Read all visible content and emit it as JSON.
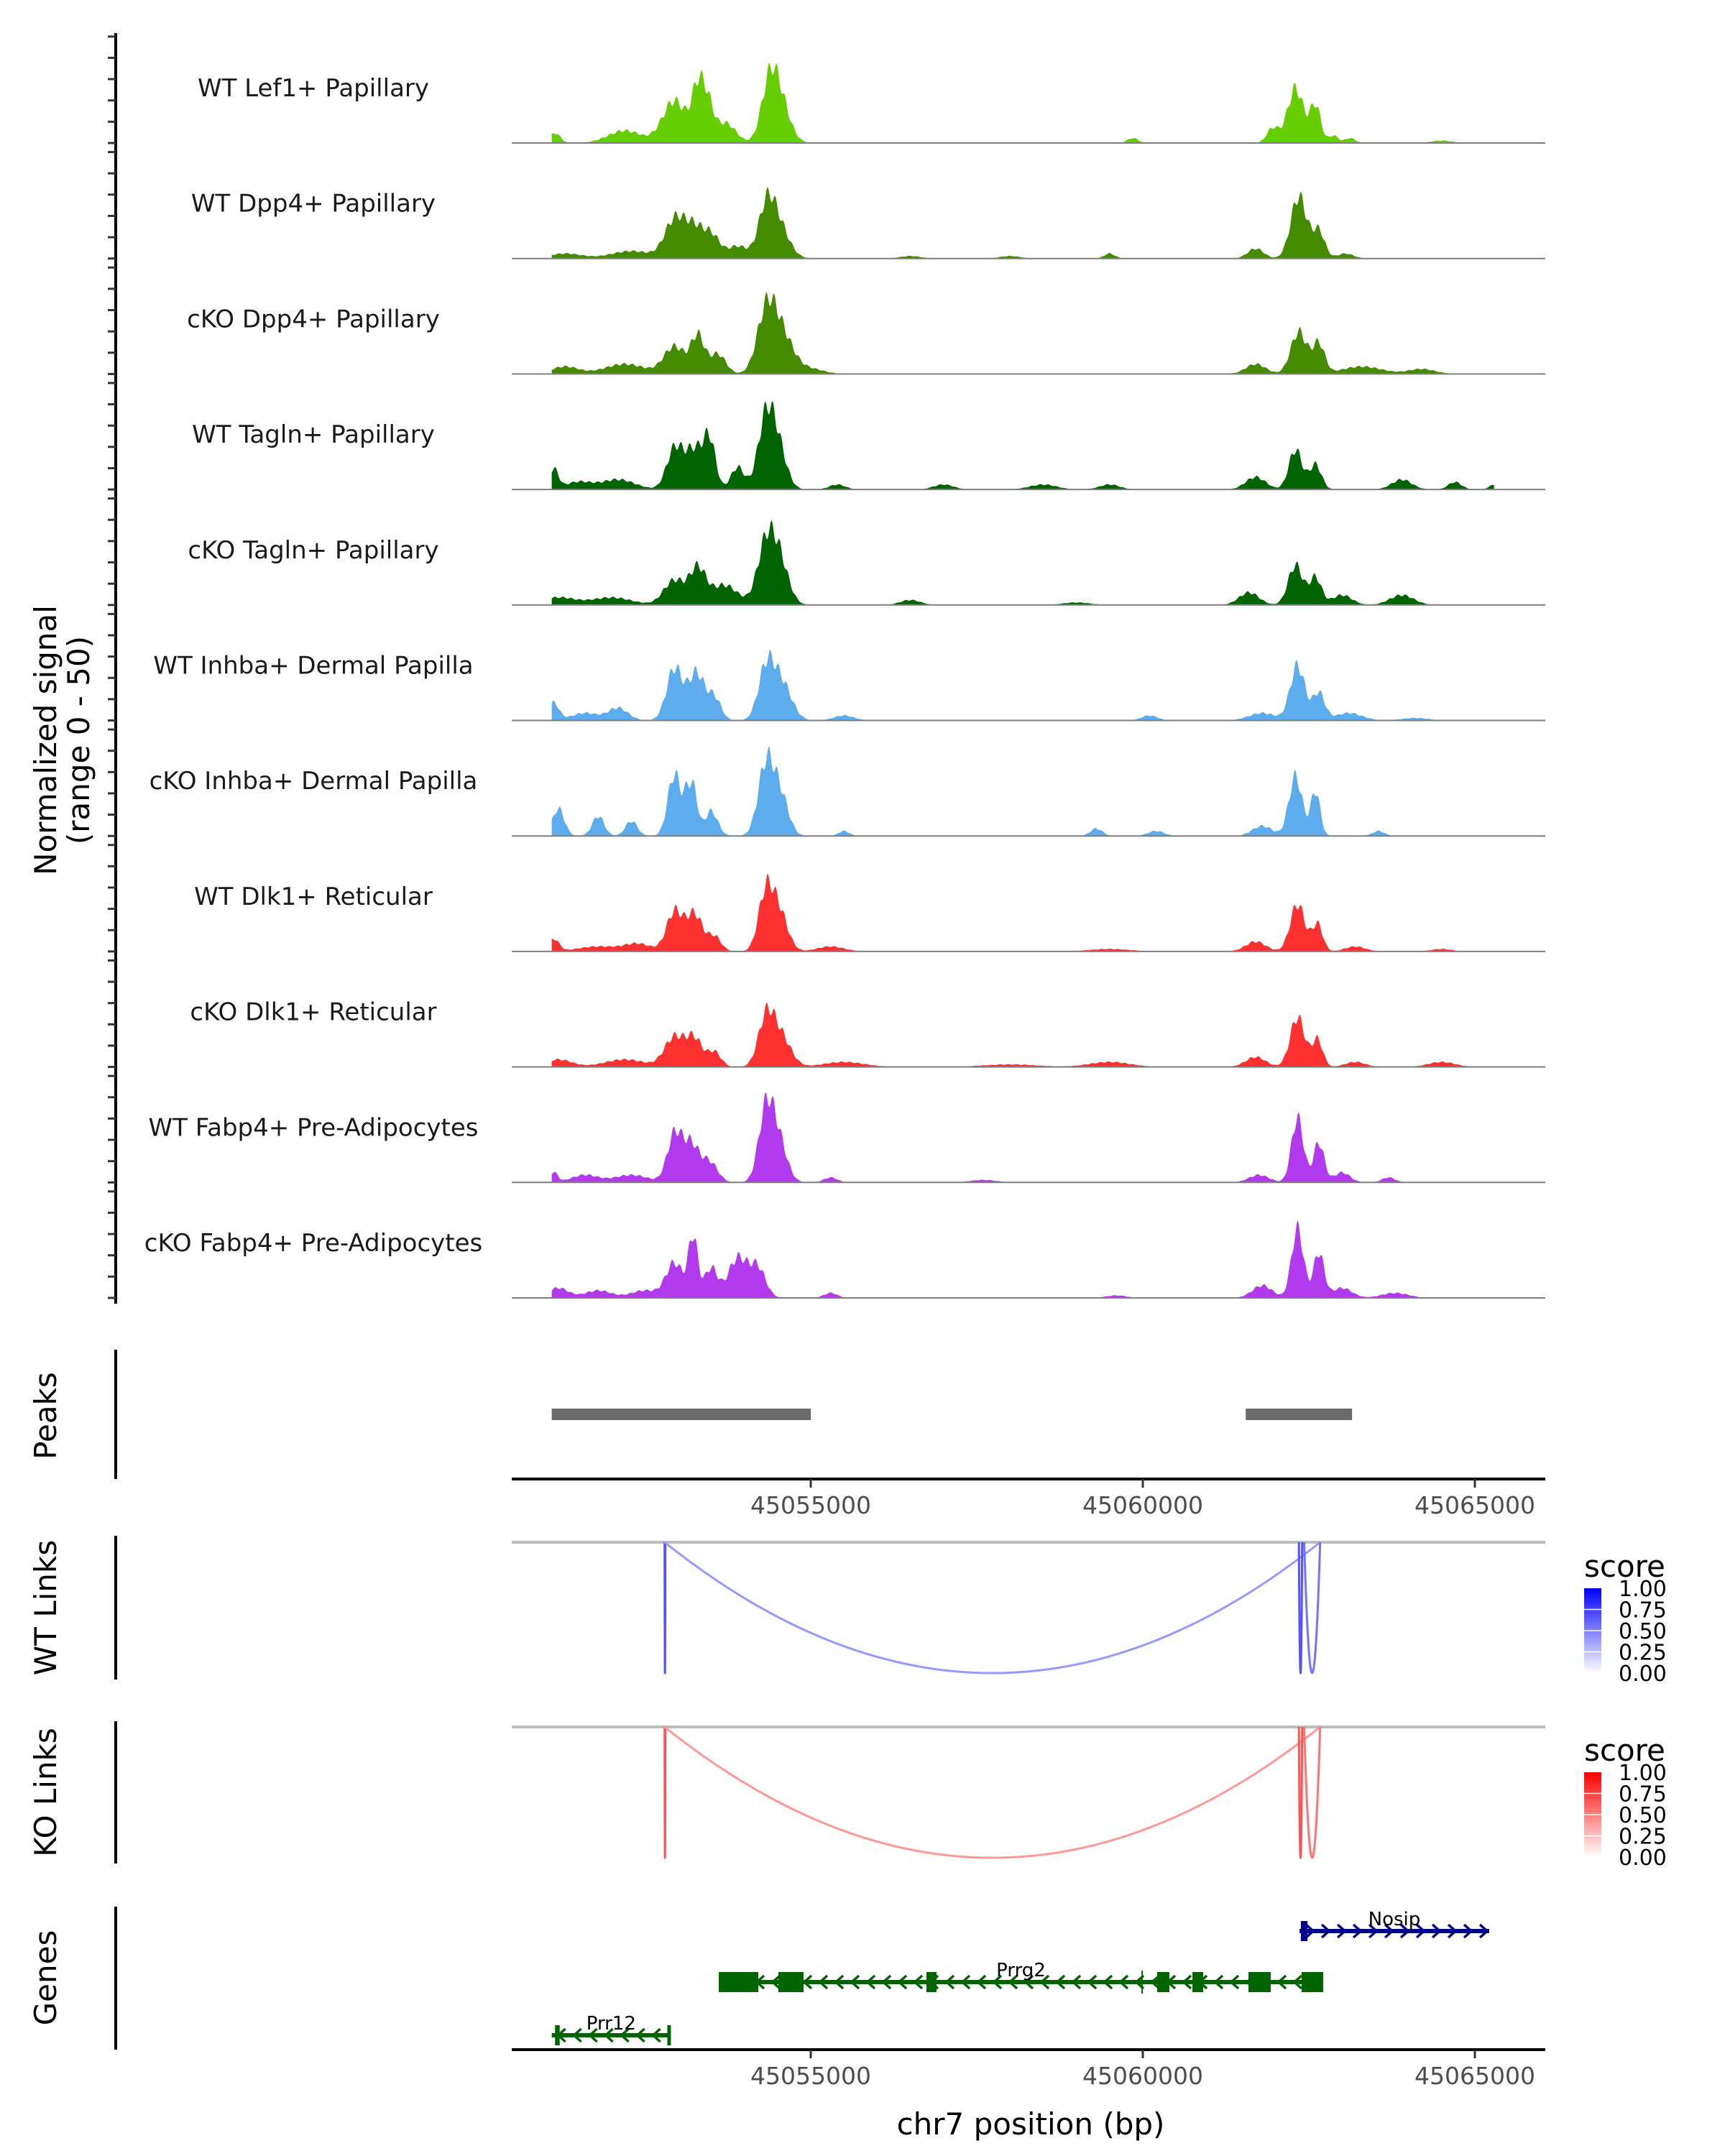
{
  "chart_data": {
    "type": "area",
    "title": "",
    "region": {
      "chrom": "chr7",
      "start": 45050400,
      "end": 45065900
    },
    "signal_axis": {
      "label_line1": "Normalized signal",
      "label_line2": "(range 0 - 50)",
      "ylim": [
        0,
        50
      ]
    },
    "coverage_tracks": [
      {
        "name": "WT Lef1+ Papillary",
        "color": "#66CD00",
        "peaks": [
          [
            45051150,
            4,
            80
          ],
          [
            45052200,
            5,
            250
          ],
          [
            45052950,
            17,
            180
          ],
          [
            45053300,
            20,
            90
          ],
          [
            45053450,
            14,
            90
          ],
          [
            45053720,
            8,
            150
          ],
          [
            45054370,
            18,
            120
          ],
          [
            45054520,
            18,
            150
          ],
          [
            45059850,
            2,
            80
          ],
          [
            45061960,
            6,
            90
          ],
          [
            45062300,
            22,
            120
          ],
          [
            45062600,
            15,
            80
          ],
          [
            45062870,
            3,
            70
          ],
          [
            45063120,
            2,
            80
          ],
          [
            45064500,
            1,
            150
          ]
        ]
      },
      {
        "name": "WT Dpp4+ Papillary",
        "color": "#458B00",
        "peaks": [
          [
            45051300,
            2,
            250
          ],
          [
            45052300,
            3,
            300
          ],
          [
            45052950,
            15,
            150
          ],
          [
            45053250,
            12,
            150
          ],
          [
            45053520,
            8,
            120
          ],
          [
            45053900,
            5,
            150
          ],
          [
            45054330,
            17,
            120
          ],
          [
            45054500,
            14,
            160
          ],
          [
            45056500,
            1,
            150
          ],
          [
            45058000,
            1,
            150
          ],
          [
            45059500,
            2,
            80
          ],
          [
            45061700,
            4,
            120
          ],
          [
            45062350,
            25,
            120
          ],
          [
            45062650,
            11,
            90
          ],
          [
            45063050,
            2,
            120
          ]
        ]
      },
      {
        "name": "cKO Dpp4+ Papillary",
        "color": "#458B00",
        "peaks": [
          [
            45051300,
            3,
            200
          ],
          [
            45052200,
            4,
            300
          ],
          [
            45052950,
            11,
            160
          ],
          [
            45053300,
            15,
            100
          ],
          [
            45053600,
            8,
            120
          ],
          [
            45054330,
            22,
            140
          ],
          [
            45054550,
            16,
            180
          ],
          [
            45055000,
            2,
            200
          ],
          [
            45061700,
            4,
            150
          ],
          [
            45062350,
            17,
            120
          ],
          [
            45062650,
            12,
            90
          ],
          [
            45063300,
            3,
            300
          ],
          [
            45064200,
            2,
            200
          ]
        ]
      },
      {
        "name": "WT Tagln+ Papillary",
        "color": "#006400",
        "peaks": [
          [
            45051130,
            8,
            70
          ],
          [
            45051500,
            3,
            200
          ],
          [
            45052100,
            4,
            250
          ],
          [
            45052950,
            16,
            120
          ],
          [
            45053250,
            16,
            140
          ],
          [
            45053480,
            18,
            90
          ],
          [
            45053900,
            9,
            100
          ],
          [
            45054320,
            26,
            120
          ],
          [
            45054500,
            17,
            130
          ],
          [
            45055400,
            2,
            120
          ],
          [
            45057000,
            2,
            150
          ],
          [
            45058500,
            2,
            200
          ],
          [
            45059500,
            2,
            150
          ],
          [
            45061700,
            5,
            150
          ],
          [
            45062300,
            16,
            100
          ],
          [
            45062600,
            10,
            90
          ],
          [
            45063900,
            4,
            150
          ],
          [
            45064700,
            3,
            100
          ],
          [
            45065300,
            2,
            80
          ]
        ]
      },
      {
        "name": "cKO Tagln+ Papillary",
        "color": "#006400",
        "peaks": [
          [
            45051200,
            3,
            250
          ],
          [
            45052000,
            3,
            300
          ],
          [
            45052950,
            10,
            160
          ],
          [
            45053300,
            14,
            120
          ],
          [
            45053700,
            8,
            200
          ],
          [
            45054320,
            22,
            130
          ],
          [
            45054520,
            18,
            140
          ],
          [
            45056500,
            2,
            150
          ],
          [
            45059000,
            1,
            200
          ],
          [
            45061600,
            5,
            150
          ],
          [
            45062300,
            16,
            110
          ],
          [
            45062600,
            11,
            90
          ],
          [
            45063000,
            4,
            150
          ],
          [
            45063900,
            4,
            180
          ]
        ]
      },
      {
        "name": "WT Inhba+ Dermal Papilla",
        "color": "#5CACEE",
        "peaks": [
          [
            45051130,
            7,
            80
          ],
          [
            45051600,
            3,
            200
          ],
          [
            45052100,
            5,
            150
          ],
          [
            45052950,
            21,
            120
          ],
          [
            45053280,
            19,
            120
          ],
          [
            45053550,
            9,
            100
          ],
          [
            45054330,
            20,
            120
          ],
          [
            45054560,
            15,
            150
          ],
          [
            45055500,
            2,
            150
          ],
          [
            45060100,
            2,
            120
          ],
          [
            45061800,
            3,
            200
          ],
          [
            45062330,
            22,
            110
          ],
          [
            45062650,
            11,
            90
          ],
          [
            45063100,
            3,
            200
          ],
          [
            45064100,
            1,
            200
          ]
        ]
      },
      {
        "name": "cKO Inhba+ Dermal Papilla",
        "color": "#5CACEE",
        "peaks": [
          [
            45051200,
            11,
            90
          ],
          [
            45051800,
            8,
            90
          ],
          [
            45052300,
            6,
            90
          ],
          [
            45052950,
            25,
            100
          ],
          [
            45053150,
            14,
            60
          ],
          [
            45053250,
            15,
            60
          ],
          [
            45053500,
            10,
            100
          ],
          [
            45054330,
            29,
            120
          ],
          [
            45054550,
            15,
            120
          ],
          [
            45055500,
            2,
            80
          ],
          [
            45059300,
            3,
            90
          ],
          [
            45060200,
            2,
            120
          ],
          [
            45061800,
            4,
            150
          ],
          [
            45062300,
            24,
            100
          ],
          [
            45062600,
            18,
            70
          ],
          [
            45063550,
            2,
            90
          ]
        ]
      },
      {
        "name": "WT Dlk1+ Reticular",
        "color": "#FF3030",
        "peaks": [
          [
            45051130,
            5,
            80
          ],
          [
            45051800,
            2,
            300
          ],
          [
            45052400,
            3,
            200
          ],
          [
            45052950,
            16,
            120
          ],
          [
            45053250,
            15,
            120
          ],
          [
            45053550,
            6,
            100
          ],
          [
            45054320,
            22,
            110
          ],
          [
            45054520,
            16,
            130
          ],
          [
            45055300,
            2,
            200
          ],
          [
            45059500,
            1,
            300
          ],
          [
            45061700,
            4,
            150
          ],
          [
            45062330,
            19,
            110
          ],
          [
            45062630,
            11,
            80
          ],
          [
            45063200,
            2,
            150
          ],
          [
            45064500,
            1,
            150
          ]
        ]
      },
      {
        "name": "cKO Dlk1+ Reticular",
        "color": "#FF3030",
        "peaks": [
          [
            45051200,
            3,
            200
          ],
          [
            45052200,
            3,
            300
          ],
          [
            45052950,
            12,
            150
          ],
          [
            45053250,
            11,
            120
          ],
          [
            45053550,
            6,
            100
          ],
          [
            45054330,
            19,
            120
          ],
          [
            45054550,
            12,
            150
          ],
          [
            45055500,
            2,
            300
          ],
          [
            45058000,
            1,
            400
          ],
          [
            45059500,
            2,
            300
          ],
          [
            45061700,
            4,
            150
          ],
          [
            45062330,
            20,
            110
          ],
          [
            45062630,
            11,
            80
          ],
          [
            45063200,
            2,
            150
          ],
          [
            45064500,
            2,
            200
          ]
        ]
      },
      {
        "name": "WT Fabp4+ Pre-Adipocytes",
        "color": "#B23AEE",
        "peaks": [
          [
            45051130,
            4,
            60
          ],
          [
            45051600,
            3,
            200
          ],
          [
            45052300,
            3,
            250
          ],
          [
            45052950,
            19,
            110
          ],
          [
            45053200,
            15,
            120
          ],
          [
            45053480,
            8,
            120
          ],
          [
            45054320,
            26,
            110
          ],
          [
            45054500,
            18,
            130
          ],
          [
            45055300,
            2,
            100
          ],
          [
            45057600,
            1,
            200
          ],
          [
            45061750,
            3,
            150
          ],
          [
            45062330,
            26,
            90
          ],
          [
            45062650,
            16,
            80
          ],
          [
            45063000,
            4,
            120
          ],
          [
            45063700,
            2,
            100
          ]
        ]
      },
      {
        "name": "cKO Fabp4+ Pre-Adipocytes",
        "color": "#B23AEE",
        "peaks": [
          [
            45051200,
            4,
            150
          ],
          [
            45051800,
            3,
            200
          ],
          [
            45052500,
            3,
            200
          ],
          [
            45052950,
            14,
            130
          ],
          [
            45053230,
            24,
            70
          ],
          [
            45053500,
            12,
            100
          ],
          [
            45053900,
            16,
            140
          ],
          [
            45054200,
            12,
            120
          ],
          [
            45055300,
            2,
            100
          ],
          [
            45059600,
            1,
            150
          ],
          [
            45061800,
            5,
            150
          ],
          [
            45062330,
            28,
            90
          ],
          [
            45062650,
            18,
            80
          ],
          [
            45063000,
            4,
            150
          ],
          [
            45063800,
            2,
            200
          ]
        ]
      }
    ],
    "peaks_track": {
      "label": "Peaks",
      "color": "#696969",
      "regions": [
        [
          45051100,
          45055000
        ],
        [
          45061550,
          45063150
        ]
      ]
    },
    "x_axis": {
      "label": "chr7 position (bp)",
      "ticks": [
        45055000,
        45060000,
        45065000
      ],
      "tick_labels": [
        "45055000",
        "45060000",
        "45065000"
      ]
    },
    "links_tracks": [
      {
        "label": "WT Links",
        "legend_title": "score",
        "low_color": "#FFFFFF",
        "high_color": "#0000FF",
        "legend_ticks": [
          "1.00",
          "0.75",
          "0.50",
          "0.25",
          "0.00"
        ],
        "links": [
          {
            "start": 45052800,
            "end": 45052810,
            "score": 0.68
          },
          {
            "start": 45052800,
            "end": 45062670,
            "score": 0.4
          },
          {
            "start": 45062350,
            "end": 45062400,
            "score": 0.68
          },
          {
            "start": 45062430,
            "end": 45062670,
            "score": 0.55
          }
        ]
      },
      {
        "label": "KO Links",
        "legend_title": "score",
        "low_color": "#FFFFFF",
        "high_color": "#FF0000",
        "legend_ticks": [
          "1.00",
          "0.75",
          "0.50",
          "0.25",
          "0.00"
        ],
        "links": [
          {
            "start": 45052800,
            "end": 45052810,
            "score": 0.68
          },
          {
            "start": 45052800,
            "end": 45062670,
            "score": 0.4
          },
          {
            "start": 45062350,
            "end": 45062400,
            "score": 0.68
          },
          {
            "start": 45062430,
            "end": 45062670,
            "score": 0.55
          }
        ]
      }
    ],
    "genes_track": {
      "label": "Genes",
      "genes": [
        {
          "name": "Nosip",
          "strand": "+",
          "color": "#00008B",
          "row": 0,
          "start": 45062360,
          "end": 45065215,
          "exons": [
            [
              45062380,
              45062480
            ]
          ]
        },
        {
          "name": "Prrg2",
          "strand": "-",
          "color": "#006400",
          "row": 1,
          "start": 45053615,
          "end": 45062716,
          "exons": [
            [
              45053615,
              45054210
            ],
            [
              45054513,
              45054892
            ],
            [
              45056742,
              45056894
            ],
            [
              45060216,
              45060400
            ],
            [
              45060747,
              45060909
            ],
            [
              45061591,
              45061926
            ],
            [
              45062392,
              45062716
            ]
          ],
          "marks": [
            45059990
          ]
        },
        {
          "name": "Prr12",
          "strand": "-",
          "color": "#006400",
          "row": 2,
          "start": 45051100,
          "end": 45052890,
          "exons": [
            [
              45051150,
              45051220
            ],
            [
              45052840,
              45052890
            ]
          ]
        }
      ]
    }
  }
}
